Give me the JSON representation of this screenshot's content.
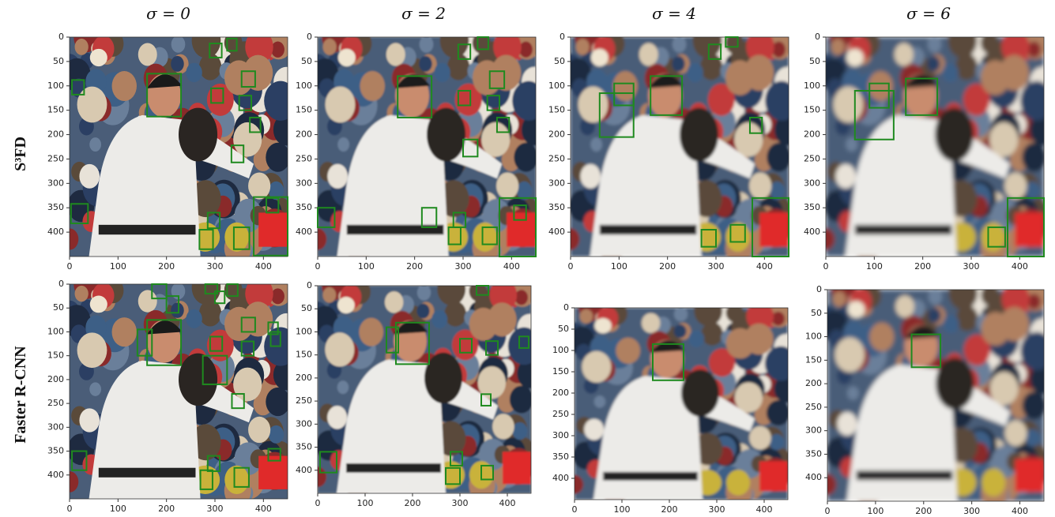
{
  "columns": [
    "σ = 0",
    "σ = 2",
    "σ = 4",
    "σ = 6"
  ],
  "rows": [
    "S³FD",
    "Faster R-CNN"
  ],
  "xlim": [
    0,
    450
  ],
  "ylim": [
    0,
    450
  ],
  "xticks": [
    0,
    100,
    200,
    300,
    400
  ],
  "yticks": [
    0,
    50,
    100,
    150,
    200,
    250,
    300,
    350,
    400
  ],
  "panels": [
    {
      "boxes": [
        [
          160,
          75,
          70,
          88
        ],
        [
          289,
          13,
          25,
          29
        ],
        [
          325,
          3,
          20,
          25
        ],
        [
          5,
          88,
          25,
          30
        ],
        [
          355,
          70,
          28,
          32
        ],
        [
          292,
          105,
          25,
          30
        ],
        [
          350,
          120,
          25,
          30
        ],
        [
          372,
          165,
          22,
          30
        ],
        [
          334,
          222,
          25,
          35
        ],
        [
          3,
          342,
          35,
          40
        ],
        [
          285,
          360,
          25,
          32
        ],
        [
          268,
          395,
          28,
          40
        ],
        [
          339,
          390,
          32,
          45
        ],
        [
          380,
          328,
          70,
          120
        ],
        [
          406,
          330,
          25,
          30
        ]
      ]
    },
    {
      "boxes": [
        [
          165,
          80,
          70,
          85
        ],
        [
          290,
          15,
          25,
          30
        ],
        [
          330,
          0,
          22,
          25
        ],
        [
          355,
          70,
          30,
          35
        ],
        [
          290,
          110,
          25,
          30
        ],
        [
          350,
          120,
          25,
          30
        ],
        [
          370,
          165,
          25,
          30
        ],
        [
          300,
          210,
          30,
          35
        ],
        [
          0,
          350,
          35,
          40
        ],
        [
          215,
          350,
          30,
          40
        ],
        [
          280,
          360,
          25,
          30
        ],
        [
          270,
          390,
          25,
          35
        ],
        [
          340,
          390,
          30,
          35
        ],
        [
          375,
          330,
          75,
          120
        ],
        [
          405,
          345,
          25,
          30
        ]
      ]
    },
    {
      "boxes": [
        [
          165,
          80,
          65,
          80
        ],
        [
          60,
          115,
          70,
          90
        ],
        [
          90,
          95,
          40,
          45
        ],
        [
          285,
          15,
          25,
          30
        ],
        [
          320,
          0,
          25,
          20
        ],
        [
          370,
          165,
          25,
          32
        ],
        [
          375,
          330,
          75,
          120
        ],
        [
          270,
          395,
          30,
          35
        ],
        [
          330,
          385,
          30,
          35
        ]
      ]
    },
    {
      "boxes": [
        [
          60,
          110,
          80,
          100
        ],
        [
          90,
          95,
          40,
          50
        ],
        [
          165,
          85,
          65,
          75
        ],
        [
          375,
          330,
          75,
          120
        ],
        [
          335,
          390,
          35,
          40
        ]
      ]
    },
    {
      "boxes": [
        [
          160,
          75,
          70,
          95
        ],
        [
          140,
          95,
          30,
          55
        ],
        [
          170,
          0,
          30,
          30
        ],
        [
          200,
          25,
          25,
          35
        ],
        [
          280,
          0,
          25,
          20
        ],
        [
          300,
          15,
          20,
          25
        ],
        [
          325,
          0,
          22,
          25
        ],
        [
          355,
          70,
          28,
          30
        ],
        [
          410,
          80,
          20,
          25
        ],
        [
          415,
          100,
          20,
          30
        ],
        [
          290,
          110,
          25,
          30
        ],
        [
          355,
          120,
          25,
          30
        ],
        [
          275,
          150,
          50,
          60
        ],
        [
          335,
          230,
          25,
          30
        ],
        [
          5,
          350,
          30,
          40
        ],
        [
          285,
          360,
          25,
          32
        ],
        [
          410,
          345,
          25,
          25
        ],
        [
          270,
          390,
          25,
          40
        ],
        [
          340,
          385,
          30,
          40
        ]
      ]
    },
    {
      "boxes": [
        [
          165,
          80,
          70,
          90
        ],
        [
          145,
          90,
          25,
          55
        ],
        [
          335,
          0,
          25,
          20
        ],
        [
          300,
          115,
          25,
          30
        ],
        [
          355,
          120,
          25,
          30
        ],
        [
          425,
          110,
          20,
          25
        ],
        [
          345,
          235,
          20,
          25
        ],
        [
          5,
          360,
          35,
          45
        ],
        [
          280,
          360,
          25,
          30
        ],
        [
          270,
          395,
          30,
          35
        ],
        [
          345,
          390,
          25,
          30
        ]
      ]
    },
    {
      "boxes": [
        [
          165,
          85,
          65,
          85
        ]
      ]
    },
    {
      "boxes": [
        [
          175,
          95,
          60,
          70
        ]
      ]
    }
  ]
}
